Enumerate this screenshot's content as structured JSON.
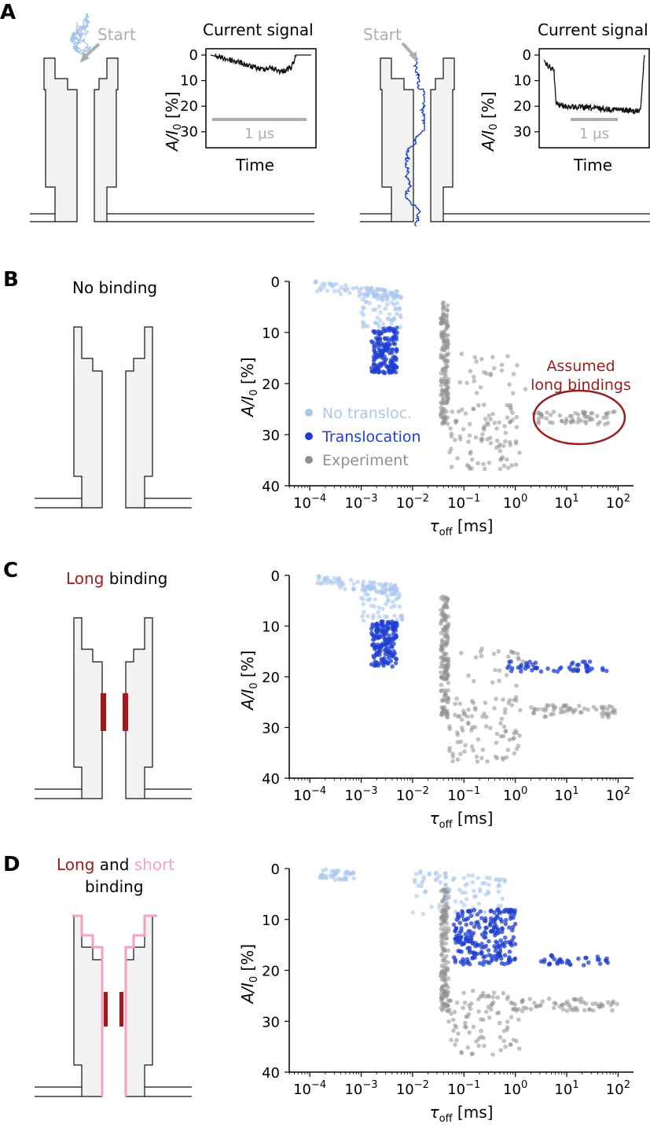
{
  "panels": {
    "a": "A",
    "b": "B",
    "c": "C",
    "d": "D"
  },
  "panel_a": {
    "start_label": "Start",
    "signal_title": "Current signal",
    "time_label": "Time",
    "scale_bar_label": "1 µs",
    "ylabel_main": "A/I",
    "ylabel_sub": "0",
    "ylabel_unit": " [%]",
    "yticks": [
      "0",
      "10",
      "20",
      "30"
    ]
  },
  "panel_b": {
    "caption": "No binding",
    "annotation_line1": "Assumed",
    "annotation_line2": "long bindings"
  },
  "panel_c": {
    "caption_part1": "Long",
    "caption_part2": " binding"
  },
  "panel_d": {
    "caption_part1": "Long",
    "caption_part2": " and ",
    "caption_part3": "short",
    "caption_line2": "binding"
  },
  "legend": {
    "no_transloc": "No transloc.",
    "translocation": "Translocation",
    "experiment": "Experiment"
  },
  "axis_text": {
    "ylabel_main": "A/I",
    "ylabel_sub": "0",
    "ylabel_unit": " [%]",
    "xlabel_main": "τ",
    "xlabel_sub": "off",
    "xlabel_unit": " [ms]"
  },
  "colors": {
    "no_transloc": "#a9c6ec",
    "translocation": "#1f3fd0",
    "experiment": "#8f8f8f",
    "long_binding": "#9b1c1c",
    "short_binding": "#f4a0c8",
    "annotation": "#9b1c1c",
    "start_arrow": "#a8b0b0"
  },
  "chart_data": [
    {
      "type": "line",
      "title": "Current signal",
      "xlabel": "Time",
      "ylabel": "A/I0 [%]",
      "ylim": [
        35,
        0
      ],
      "yticks": [
        0,
        10,
        20,
        30
      ],
      "scale_bar": "1 µs",
      "series": [
        {
          "name": "no translocation trace",
          "x": [
            0,
            0.1,
            0.2,
            0.3,
            0.4,
            0.5,
            0.6,
            0.7,
            0.8,
            0.85,
            1.0
          ],
          "values": [
            0,
            1,
            2,
            3,
            4.5,
            5.5,
            5,
            6.5,
            5,
            0,
            0
          ]
        }
      ]
    },
    {
      "type": "line",
      "title": "Current signal",
      "xlabel": "Time",
      "ylabel": "A/I0 [%]",
      "ylim": [
        35,
        0
      ],
      "yticks": [
        0,
        10,
        20,
        30
      ],
      "scale_bar": "1 µs",
      "series": [
        {
          "name": "translocation trace",
          "x": [
            0,
            0.1,
            0.12,
            0.2,
            0.4,
            0.6,
            0.8,
            0.93,
            0.96,
            1.0
          ],
          "values": [
            3,
            6,
            19,
            20,
            20.5,
            21,
            21.5,
            22,
            21,
            0
          ]
        }
      ]
    },
    {
      "type": "scatter",
      "panel": "B",
      "xscale": "log10",
      "xlabel": "τoff [ms]",
      "ylabel": "A/I0 [%]",
      "xlim_log10": [
        -4.4,
        2.3
      ],
      "xticks_log10": [
        -4,
        -3,
        -2,
        -1,
        0,
        1,
        2
      ],
      "ylim": [
        40,
        0
      ],
      "yticks": [
        0,
        10,
        20,
        30,
        40
      ],
      "series": [
        {
          "name": "No transloc.",
          "color": "#a9c6ec",
          "clusters": [
            {
              "log10x": [
                -3.9,
                -2.3
              ],
              "y": [
                0,
                2
              ],
              "n": 70
            },
            {
              "log10x": [
                -3.0,
                -2.2
              ],
              "y": [
                2,
                9
              ],
              "n": 70
            }
          ]
        },
        {
          "name": "Translocation",
          "color": "#1f3fd0",
          "clusters": [
            {
              "log10x": [
                -2.8,
                -2.3
              ],
              "y": [
                9,
                18
              ],
              "n": 160
            }
          ]
        },
        {
          "name": "Experiment",
          "color": "#8f8f8f",
          "clusters": [
            {
              "log10x": [
                -1.45,
                -1.3
              ],
              "y": [
                4,
                28
              ],
              "n": 150
            },
            {
              "log10x": [
                -1.3,
                0.1
              ],
              "y": [
                24,
                37
              ],
              "n": 90
            },
            {
              "log10x": [
                -1.1,
                0.2
              ],
              "y": [
                14,
                22
              ],
              "n": 25
            },
            {
              "log10x": [
                0.3,
                2.0
              ],
              "y": [
                25.5,
                28
              ],
              "n": 60
            }
          ]
        }
      ]
    },
    {
      "type": "scatter",
      "panel": "C",
      "xscale": "log10",
      "xlabel": "τoff [ms]",
      "ylabel": "A/I0 [%]",
      "xlim_log10": [
        -4.4,
        2.3
      ],
      "xticks_log10": [
        -4,
        -3,
        -2,
        -1,
        0,
        1,
        2
      ],
      "ylim": [
        40,
        0
      ],
      "yticks": [
        0,
        10,
        20,
        30,
        40
      ],
      "series": [
        {
          "name": "No transloc.",
          "color": "#a9c6ec",
          "clusters": [
            {
              "log10x": [
                -3.9,
                -2.3
              ],
              "y": [
                0,
                2
              ],
              "n": 70
            },
            {
              "log10x": [
                -3.0,
                -2.2
              ],
              "y": [
                2,
                9
              ],
              "n": 70
            }
          ]
        },
        {
          "name": "Translocation",
          "color": "#1f3fd0",
          "clusters": [
            {
              "log10x": [
                -2.8,
                -2.3
              ],
              "y": [
                9,
                18
              ],
              "n": 160
            },
            {
              "log10x": [
                -0.2,
                1.8
              ],
              "y": [
                17,
                19
              ],
              "n": 55
            }
          ]
        },
        {
          "name": "Experiment",
          "color": "#8f8f8f",
          "clusters": [
            {
              "log10x": [
                -1.45,
                -1.3
              ],
              "y": [
                4,
                28
              ],
              "n": 150
            },
            {
              "log10x": [
                -1.3,
                0.1
              ],
              "y": [
                24,
                37
              ],
              "n": 90
            },
            {
              "log10x": [
                -1.1,
                0.2
              ],
              "y": [
                14,
                22
              ],
              "n": 25
            },
            {
              "log10x": [
                0.3,
                2.0
              ],
              "y": [
                25.5,
                28
              ],
              "n": 60
            }
          ]
        }
      ]
    },
    {
      "type": "scatter",
      "panel": "D",
      "xscale": "log10",
      "xlabel": "τoff [ms]",
      "ylabel": "A/I0 [%]",
      "xlim_log10": [
        -4.4,
        2.3
      ],
      "xticks_log10": [
        -4,
        -3,
        -2,
        -1,
        0,
        1,
        2
      ],
      "ylim": [
        40,
        0
      ],
      "yticks": [
        0,
        10,
        20,
        30,
        40
      ],
      "series": [
        {
          "name": "No transloc.",
          "color": "#a9c6ec",
          "clusters": [
            {
              "log10x": [
                -3.8,
                -3.1
              ],
              "y": [
                0,
                2
              ],
              "n": 40
            },
            {
              "log10x": [
                -2.0,
                -0.2
              ],
              "y": [
                0,
                9
              ],
              "n": 90
            }
          ]
        },
        {
          "name": "Translocation",
          "color": "#1f3fd0",
          "clusters": [
            {
              "log10x": [
                -1.2,
                0.0
              ],
              "y": [
                8,
                19
              ],
              "n": 230
            },
            {
              "log10x": [
                0.5,
                1.8
              ],
              "y": [
                17,
                19
              ],
              "n": 35
            }
          ]
        },
        {
          "name": "Experiment",
          "color": "#8f8f8f",
          "clusters": [
            {
              "log10x": [
                -1.45,
                -1.3
              ],
              "y": [
                4,
                28
              ],
              "n": 150
            },
            {
              "log10x": [
                -1.3,
                0.1
              ],
              "y": [
                24,
                37
              ],
              "n": 90
            },
            {
              "log10x": [
                0.0,
                2.0
              ],
              "y": [
                25.5,
                28
              ],
              "n": 60
            }
          ]
        }
      ]
    }
  ]
}
